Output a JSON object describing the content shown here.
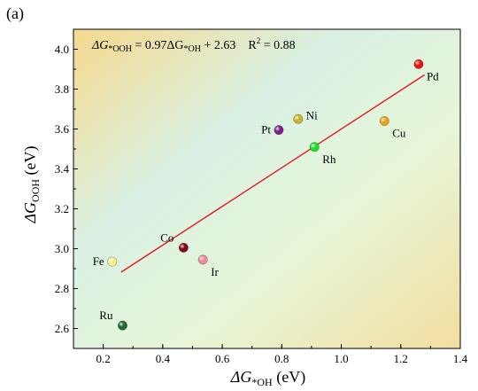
{
  "panel_label": "(a)",
  "chart_data": {
    "type": "scatter",
    "xlim": [
      0.1,
      1.4
    ],
    "ylim": [
      2.5,
      4.1
    ],
    "x_ticks": [
      0.2,
      0.4,
      0.6,
      0.8,
      1.0,
      1.2,
      1.4
    ],
    "x_tick_labels": [
      "0.2",
      "0.4",
      "0.6",
      "0.8",
      "1.0",
      "1.2",
      "1.4"
    ],
    "y_ticks": [
      2.6,
      2.8,
      3.0,
      3.2,
      3.4,
      3.6,
      3.8,
      4.0
    ],
    "y_tick_labels": [
      "2.6",
      "2.8",
      "3.0",
      "3.2",
      "3.4",
      "3.6",
      "3.8",
      "4.0"
    ],
    "xlabel": {
      "prefix": "ΔG",
      "sub": "*OH",
      "suffix": " (eV)"
    },
    "ylabel": {
      "prefix": "ΔG",
      "sub": "OOH",
      "suffix": " (eV)"
    },
    "equation": {
      "lhs": "ΔG",
      "lhs_sub": "*OOH",
      "mid": " = 0.97ΔG",
      "mid_sub": "*OH",
      "rhs": " + 2.63",
      "r2": "R",
      "r2_sup": "2",
      "r2_val": " =  0.88"
    },
    "fit_line": {
      "slope": 0.97,
      "intercept": 2.63,
      "x_range": [
        0.26,
        1.28
      ],
      "color": "#e31a1c"
    },
    "background_gradient": [
      "#f6d98e",
      "#d9f1e4",
      "#e8f6d7",
      "#f3dda0"
    ],
    "points": [
      {
        "label": "Ru",
        "x": 0.265,
        "y": 2.615,
        "color": "#1f6b2f",
        "label_pos": "top-left"
      },
      {
        "label": "Fe",
        "x": 0.23,
        "y": 2.935,
        "color": "#f7f08a",
        "label_pos": "left"
      },
      {
        "label": "Co",
        "x": 0.47,
        "y": 3.005,
        "color": "#7d0a16",
        "label_pos": "top-left"
      },
      {
        "label": "Ir",
        "x": 0.535,
        "y": 2.945,
        "color": "#f4879a",
        "label_pos": "bottom-right"
      },
      {
        "label": "Pt",
        "x": 0.79,
        "y": 3.595,
        "color": "#7b1f8e",
        "label_pos": "left"
      },
      {
        "label": "Ni",
        "x": 0.855,
        "y": 3.65,
        "color": "#c8b42a",
        "label_pos": "top-right"
      },
      {
        "label": "Rh",
        "x": 0.91,
        "y": 3.51,
        "color": "#1ee02a",
        "label_pos": "bottom-right"
      },
      {
        "label": "Cu",
        "x": 1.145,
        "y": 3.64,
        "color": "#e6a21c",
        "label_pos": "bottom-right"
      },
      {
        "label": "Pd",
        "x": 1.26,
        "y": 3.925,
        "color": "#ee1111",
        "label_pos": "bottom-right"
      }
    ]
  }
}
